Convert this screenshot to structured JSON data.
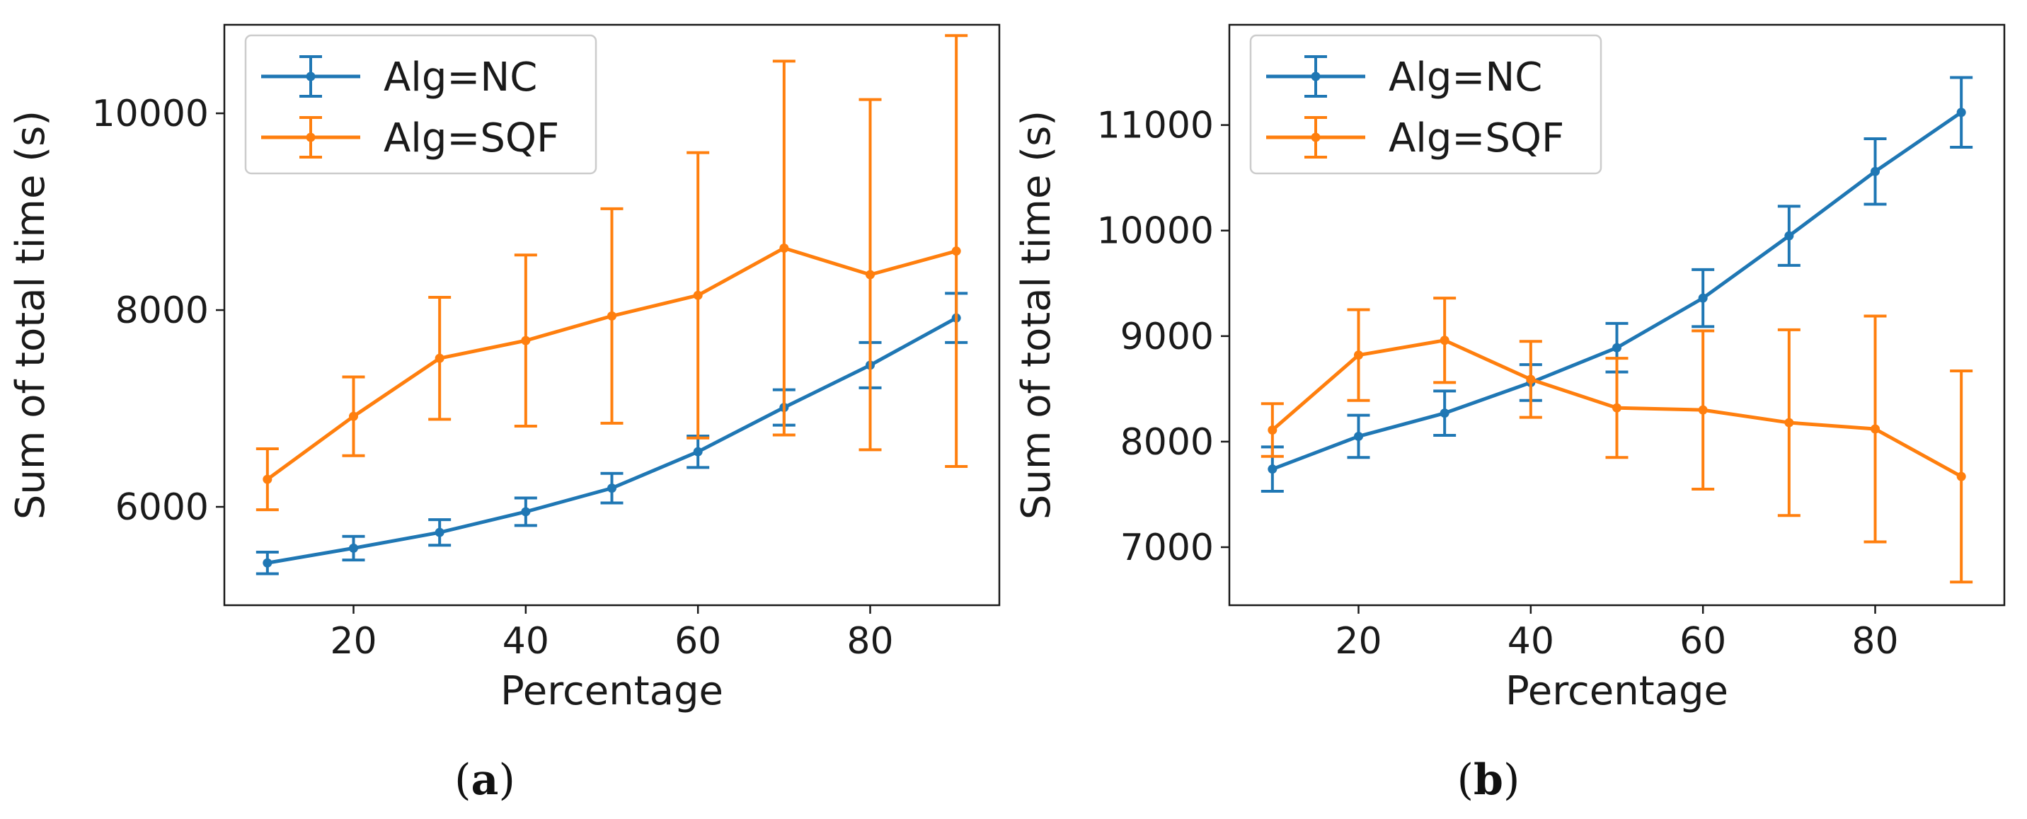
{
  "chart_data": [
    {
      "type": "line",
      "panel": "a",
      "caption_letter": "a",
      "xlabel": "Percentage",
      "ylabel": "Sum of total time (s)",
      "xlim": [
        5,
        95
      ],
      "ylim": [
        5000,
        10900
      ],
      "xticks": [
        20,
        40,
        60,
        80
      ],
      "yticks": [
        6000,
        8000,
        10000
      ],
      "legend_position": "top-left",
      "series": [
        {
          "name": "Alg=NC",
          "color": "#1f77b4",
          "x": [
            10,
            20,
            30,
            40,
            50,
            60,
            70,
            80,
            90
          ],
          "y": [
            5430,
            5580,
            5740,
            5950,
            6190,
            6560,
            7010,
            7440,
            7920
          ],
          "err": [
            110,
            120,
            130,
            140,
            150,
            160,
            180,
            230,
            250
          ]
        },
        {
          "name": "Alg=SQF",
          "color": "#ff7f0e",
          "x": [
            10,
            20,
            30,
            40,
            50,
            60,
            70,
            80,
            90
          ],
          "y": [
            6280,
            6920,
            7510,
            7690,
            7940,
            8150,
            8630,
            8360,
            8600
          ],
          "err": [
            310,
            400,
            620,
            870,
            1090,
            1450,
            1900,
            1780,
            2190
          ]
        }
      ]
    },
    {
      "type": "line",
      "panel": "b",
      "caption_letter": "b",
      "xlabel": "Percentage",
      "ylabel": "Sum of total time (s)",
      "xlim": [
        5,
        95
      ],
      "ylim": [
        6450,
        11950
      ],
      "xticks": [
        20,
        40,
        60,
        80
      ],
      "yticks": [
        7000,
        8000,
        9000,
        10000,
        11000
      ],
      "legend_position": "top-left",
      "series": [
        {
          "name": "Alg=NC",
          "color": "#1f77b4",
          "x": [
            10,
            20,
            30,
            40,
            50,
            60,
            70,
            80,
            90
          ],
          "y": [
            7740,
            8050,
            8270,
            8560,
            8890,
            9360,
            9950,
            10560,
            11120
          ],
          "err": [
            210,
            200,
            210,
            170,
            230,
            270,
            280,
            310,
            330
          ]
        },
        {
          "name": "Alg=SQF",
          "color": "#ff7f0e",
          "x": [
            10,
            20,
            30,
            40,
            50,
            60,
            70,
            80,
            90
          ],
          "y": [
            8110,
            8820,
            8960,
            8590,
            8320,
            8300,
            8180,
            8120,
            7670
          ],
          "err": [
            250,
            430,
            400,
            360,
            470,
            750,
            880,
            1070,
            1000
          ]
        }
      ]
    }
  ]
}
